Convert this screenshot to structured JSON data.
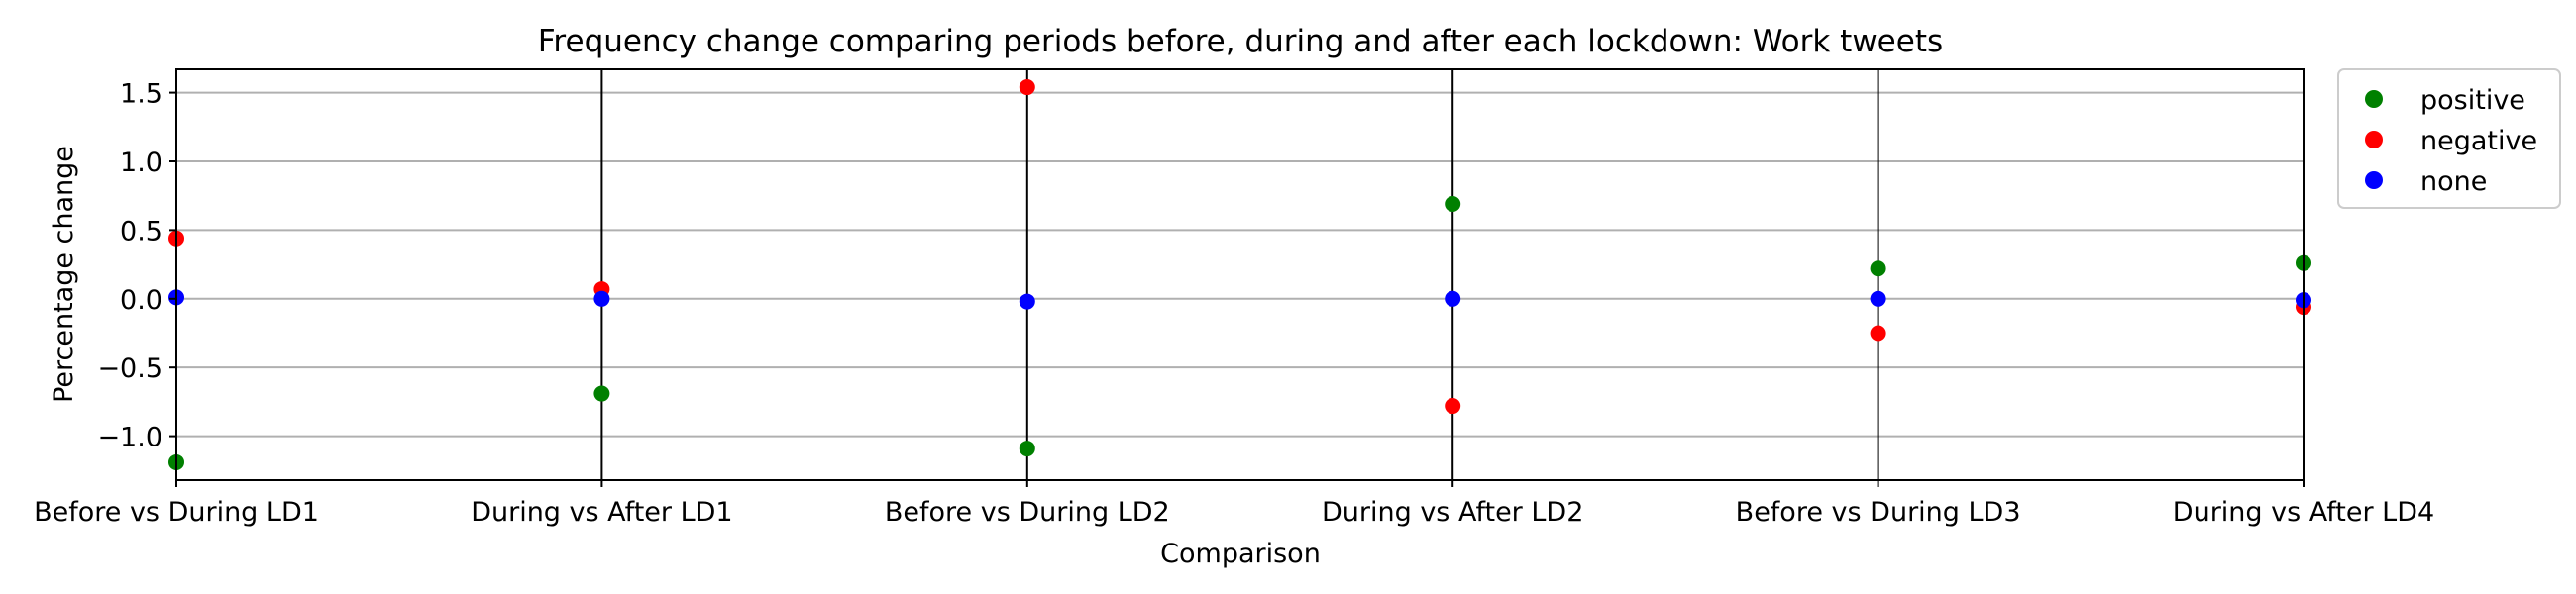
{
  "chart_data": {
    "type": "scatter",
    "title": "Frequency change comparing periods before, during and after each lockdown: Work tweets",
    "xlabel": "Comparison",
    "ylabel": "Percentage change",
    "categories": [
      "Before vs During LD1",
      "During vs After LD1",
      "Before vs During LD2",
      "During vs After LD2",
      "Before vs During LD3",
      "During vs After LD4"
    ],
    "ylim": [
      -1.32,
      1.67
    ],
    "yticks": [
      {
        "value": -1.0,
        "label": "−1.0"
      },
      {
        "value": -0.5,
        "label": "−0.5"
      },
      {
        "value": 0.0,
        "label": "0.0"
      },
      {
        "value": 0.5,
        "label": "0.5"
      },
      {
        "value": 1.0,
        "label": "1.0"
      },
      {
        "value": 1.5,
        "label": "1.5"
      }
    ],
    "grid": "horizontal",
    "legend_position": "outside-top-right",
    "series": [
      {
        "name": "positive",
        "color": "#008000",
        "values": [
          -1.19,
          -0.69,
          -1.09,
          0.69,
          0.22,
          0.26
        ]
      },
      {
        "name": "negative",
        "color": "#ff0000",
        "values": [
          0.44,
          0.07,
          1.54,
          -0.78,
          -0.25,
          -0.06
        ]
      },
      {
        "name": "none",
        "color": "#0000ff",
        "values": [
          0.01,
          0.0,
          -0.02,
          0.0,
          0.0,
          -0.01
        ]
      }
    ],
    "vertical_lines_at_categories": [
      1,
      2,
      3,
      4
    ]
  }
}
